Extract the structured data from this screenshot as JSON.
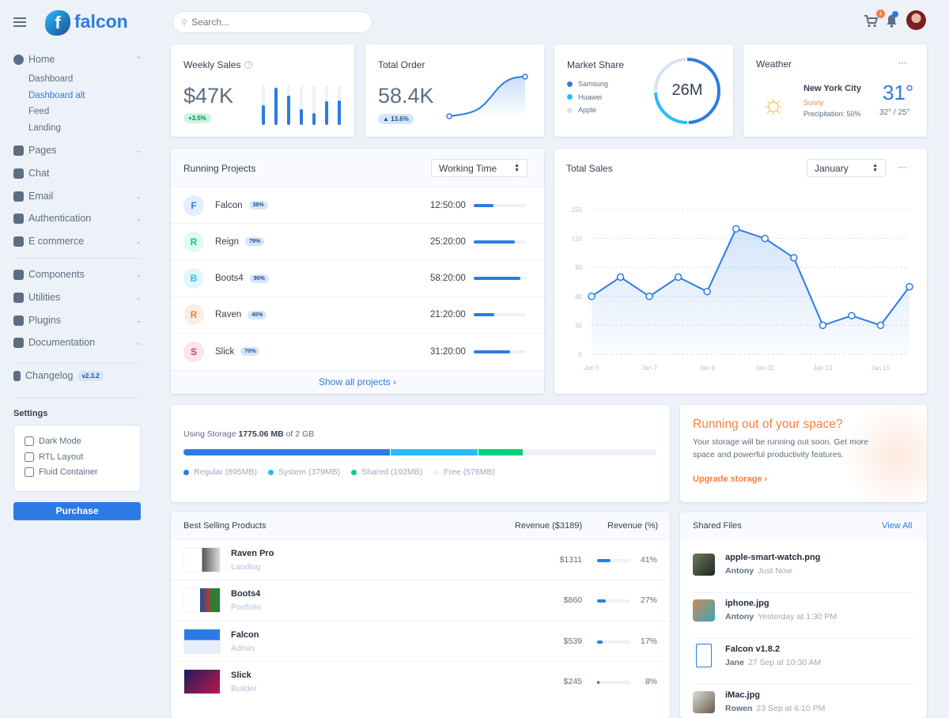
{
  "brand": {
    "name": "falcon"
  },
  "search": {
    "placeholder": "Search..."
  },
  "topbar": {
    "cart_count": "1"
  },
  "sidebar": {
    "home": "Home",
    "home_items": [
      "Dashboard",
      "Dashboard alt",
      "Feed",
      "Landing"
    ],
    "active_sub": "Dashboard alt",
    "items": [
      "Pages",
      "Chat",
      "Email",
      "Authentication",
      "E commerce"
    ],
    "items2": [
      "Components",
      "Utilities",
      "Plugins",
      "Documentation"
    ],
    "changelog": "Changelog",
    "version": "v2.3.2",
    "settings_title": "Settings",
    "settings": [
      {
        "label": "Dark Mode",
        "checked": false
      },
      {
        "label": "RTL Layout",
        "checked": false
      },
      {
        "label": "Fluid Container",
        "checked": false
      }
    ],
    "purchase": "Purchase"
  },
  "weekly_sales": {
    "title": "Weekly Sales",
    "value": "$47K",
    "change": "+3.5%",
    "bars": [
      0.5,
      0.95,
      0.75,
      0.4,
      0.3,
      0.6,
      0.62
    ]
  },
  "total_order": {
    "title": "Total Order",
    "value": "58.4K",
    "change": "13.6%"
  },
  "market_share": {
    "title": "Market Share",
    "total": "26M",
    "legend": [
      {
        "name": "Samsung",
        "color": "#2c7be5",
        "share": 0.5
      },
      {
        "name": "Huawei",
        "color": "#27bcfd",
        "share": 0.25
      },
      {
        "name": "Apple",
        "color": "#d8e2ef",
        "share": 0.25
      }
    ]
  },
  "weather": {
    "title": "Weather",
    "city": "New York City",
    "condition": "Sunny",
    "precipitation": "Precipitation: 50%",
    "temp": "31°",
    "range": "32° / 25°"
  },
  "running_projects": {
    "title": "Running Projects",
    "select": "Working Time",
    "footer": "Show all projects",
    "rows": [
      {
        "initial": "F",
        "name": "Falcon",
        "pct": "38%",
        "time": "12:50:00",
        "progress": 38,
        "color": "#2c7be5",
        "bg": "#e3eefc"
      },
      {
        "initial": "R",
        "name": "Reign",
        "pct": "79%",
        "time": "25:20:00",
        "progress": 79,
        "color": "#00d27a",
        "bg": "#e0faef"
      },
      {
        "initial": "B",
        "name": "Boots4",
        "pct": "90%",
        "time": "58:20:00",
        "progress": 90,
        "color": "#27bcfd",
        "bg": "#e3f6ff"
      },
      {
        "initial": "R",
        "name": "Raven",
        "pct": "40%",
        "time": "21:20:00",
        "progress": 40,
        "color": "#f5803e",
        "bg": "#fdeee4"
      },
      {
        "initial": "S",
        "name": "Slick",
        "pct": "70%",
        "time": "31:20:00",
        "progress": 70,
        "color": "#e63757",
        "bg": "#fce5e9"
      }
    ]
  },
  "chart_data": {
    "type": "line",
    "title": "Total Sales",
    "select": "January",
    "x": [
      "Jan 5",
      "Jan 6",
      "Jan 7",
      "Jan 8",
      "Jan 9",
      "Jan 10",
      "Jan 11",
      "Jan 12",
      "Jan 13",
      "Jan 14",
      "Jan 15",
      "Jan 16"
    ],
    "values": [
      60,
      80,
      60,
      80,
      65,
      130,
      120,
      100,
      30,
      40,
      30,
      70
    ],
    "xticks": [
      "Jan 5",
      "Jan 7",
      "Jan 9",
      "Jan 11",
      "Jan 13",
      "Jan 15"
    ],
    "yticks": [
      0,
      30,
      60,
      90,
      120,
      150
    ],
    "ylim": [
      0,
      150
    ],
    "grid": true,
    "color": "#2c7be5"
  },
  "storage": {
    "prefix": "Using Storage",
    "used": "1775.06 MB",
    "suffix": "of 2 GB",
    "segments": [
      {
        "label": "Regular (895MB)",
        "mb": 895,
        "color": "#2c7be5"
      },
      {
        "label": "System (379MB)",
        "mb": 379,
        "color": "#27bcfd"
      },
      {
        "label": "Shared (192MB)",
        "mb": 192,
        "color": "#00d27a"
      },
      {
        "label": "Free (576MB)",
        "mb": 576,
        "color": "#edf2f9"
      }
    ]
  },
  "promo": {
    "title": "Running out of your space?",
    "text": "Your storage will be running out soon. Get more space and powerful productivity features.",
    "link": "Upgrade storage"
  },
  "products": {
    "title": "Best Selling Products",
    "col1": "Revenue ($3189)",
    "col2": "Revenue (%)",
    "rows": [
      {
        "name": "Raven Pro",
        "type": "Landing",
        "revenue": "$1311",
        "pct": "41%",
        "p": 41
      },
      {
        "name": "Boots4",
        "type": "Portfolio",
        "revenue": "$860",
        "pct": "27%",
        "p": 27
      },
      {
        "name": "Falcon",
        "type": "Admin",
        "revenue": "$539",
        "pct": "17%",
        "p": 17
      },
      {
        "name": "Slick",
        "type": "Builder",
        "revenue": "$245",
        "pct": "8%",
        "p": 8
      }
    ]
  },
  "shared_files": {
    "title": "Shared Files",
    "view_all": "View All",
    "rows": [
      {
        "name": "apple-smart-watch.png",
        "user": "Antony",
        "time": "Just Now"
      },
      {
        "name": "iphone.jpg",
        "user": "Antony",
        "time": "Yesterday at 1:30 PM"
      },
      {
        "name": "Falcon v1.8.2",
        "user": "Jane",
        "time": "27 Sep at 10:30 AM"
      },
      {
        "name": "iMac.jpg",
        "user": "Rowen",
        "time": "23 Sep at 6:10 PM"
      }
    ]
  }
}
